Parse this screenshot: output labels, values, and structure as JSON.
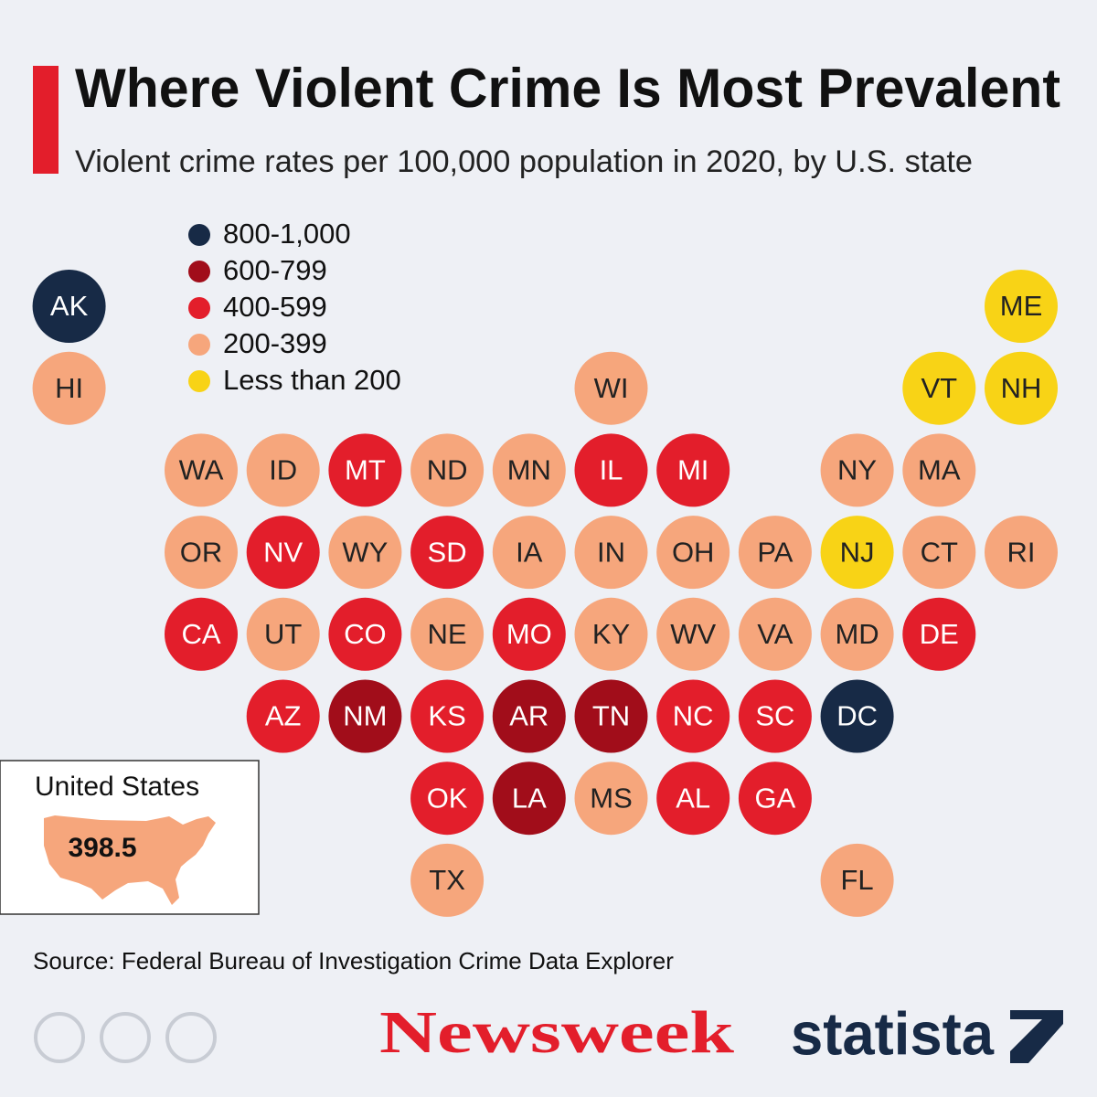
{
  "header": {
    "title": "Where Violent Crime Is Most Prevalent",
    "subtitle": "Violent crime rates per 100,000 population in 2020, by U.S. state"
  },
  "legend": [
    {
      "label": "800-1,000",
      "color": "#172a46"
    },
    {
      "label": "600-799",
      "color": "#a10d1a"
    },
    {
      "label": "400-599",
      "color": "#e31e2b"
    },
    {
      "label": "200-399",
      "color": "#f6a67c"
    },
    {
      "label": "Less than 200",
      "color": "#f8d316"
    }
  ],
  "states": [
    {
      "label": "AK",
      "group": 0
    },
    {
      "label": "HI",
      "group": 3
    },
    {
      "label": "ME",
      "group": 4
    },
    {
      "label": "WI",
      "group": 3
    },
    {
      "label": "VT",
      "group": 4
    },
    {
      "label": "NH",
      "group": 4
    },
    {
      "label": "WA",
      "group": 3
    },
    {
      "label": "ID",
      "group": 3
    },
    {
      "label": "MT",
      "group": 2
    },
    {
      "label": "ND",
      "group": 3
    },
    {
      "label": "MN",
      "group": 3
    },
    {
      "label": "IL",
      "group": 2
    },
    {
      "label": "MI",
      "group": 2
    },
    {
      "label": "NY",
      "group": 3
    },
    {
      "label": "MA",
      "group": 3
    },
    {
      "label": "OR",
      "group": 3
    },
    {
      "label": "NV",
      "group": 2
    },
    {
      "label": "WY",
      "group": 3
    },
    {
      "label": "SD",
      "group": 2
    },
    {
      "label": "IA",
      "group": 3
    },
    {
      "label": "IN",
      "group": 3
    },
    {
      "label": "OH",
      "group": 3
    },
    {
      "label": "PA",
      "group": 3
    },
    {
      "label": "NJ",
      "group": 4
    },
    {
      "label": "CT",
      "group": 3
    },
    {
      "label": "RI",
      "group": 3
    },
    {
      "label": "CA",
      "group": 2
    },
    {
      "label": "UT",
      "group": 3
    },
    {
      "label": "CO",
      "group": 2
    },
    {
      "label": "NE",
      "group": 3
    },
    {
      "label": "MO",
      "group": 2
    },
    {
      "label": "KY",
      "group": 3
    },
    {
      "label": "WV",
      "group": 3
    },
    {
      "label": "VA",
      "group": 3
    },
    {
      "label": "MD",
      "group": 3
    },
    {
      "label": "DE",
      "group": 2
    },
    {
      "label": "AZ",
      "group": 2
    },
    {
      "label": "NM",
      "group": 1
    },
    {
      "label": "KS",
      "group": 2
    },
    {
      "label": "AR",
      "group": 1
    },
    {
      "label": "TN",
      "group": 1
    },
    {
      "label": "NC",
      "group": 2
    },
    {
      "label": "SC",
      "group": 2
    },
    {
      "label": "DC",
      "group": 0
    },
    {
      "label": "OK",
      "group": 2
    },
    {
      "label": "LA",
      "group": 1
    },
    {
      "label": "MS",
      "group": 3
    },
    {
      "label": "AL",
      "group": 2
    },
    {
      "label": "GA",
      "group": 2
    },
    {
      "label": "TX",
      "group": 3
    },
    {
      "label": "FL",
      "group": 3
    }
  ],
  "national": {
    "label": "United States",
    "value": "398.5"
  },
  "footer": {
    "source": "Source: Federal Bureau of Investigation Crime Data Explorer",
    "publisher": "Newsweek",
    "brand": "statista"
  }
}
